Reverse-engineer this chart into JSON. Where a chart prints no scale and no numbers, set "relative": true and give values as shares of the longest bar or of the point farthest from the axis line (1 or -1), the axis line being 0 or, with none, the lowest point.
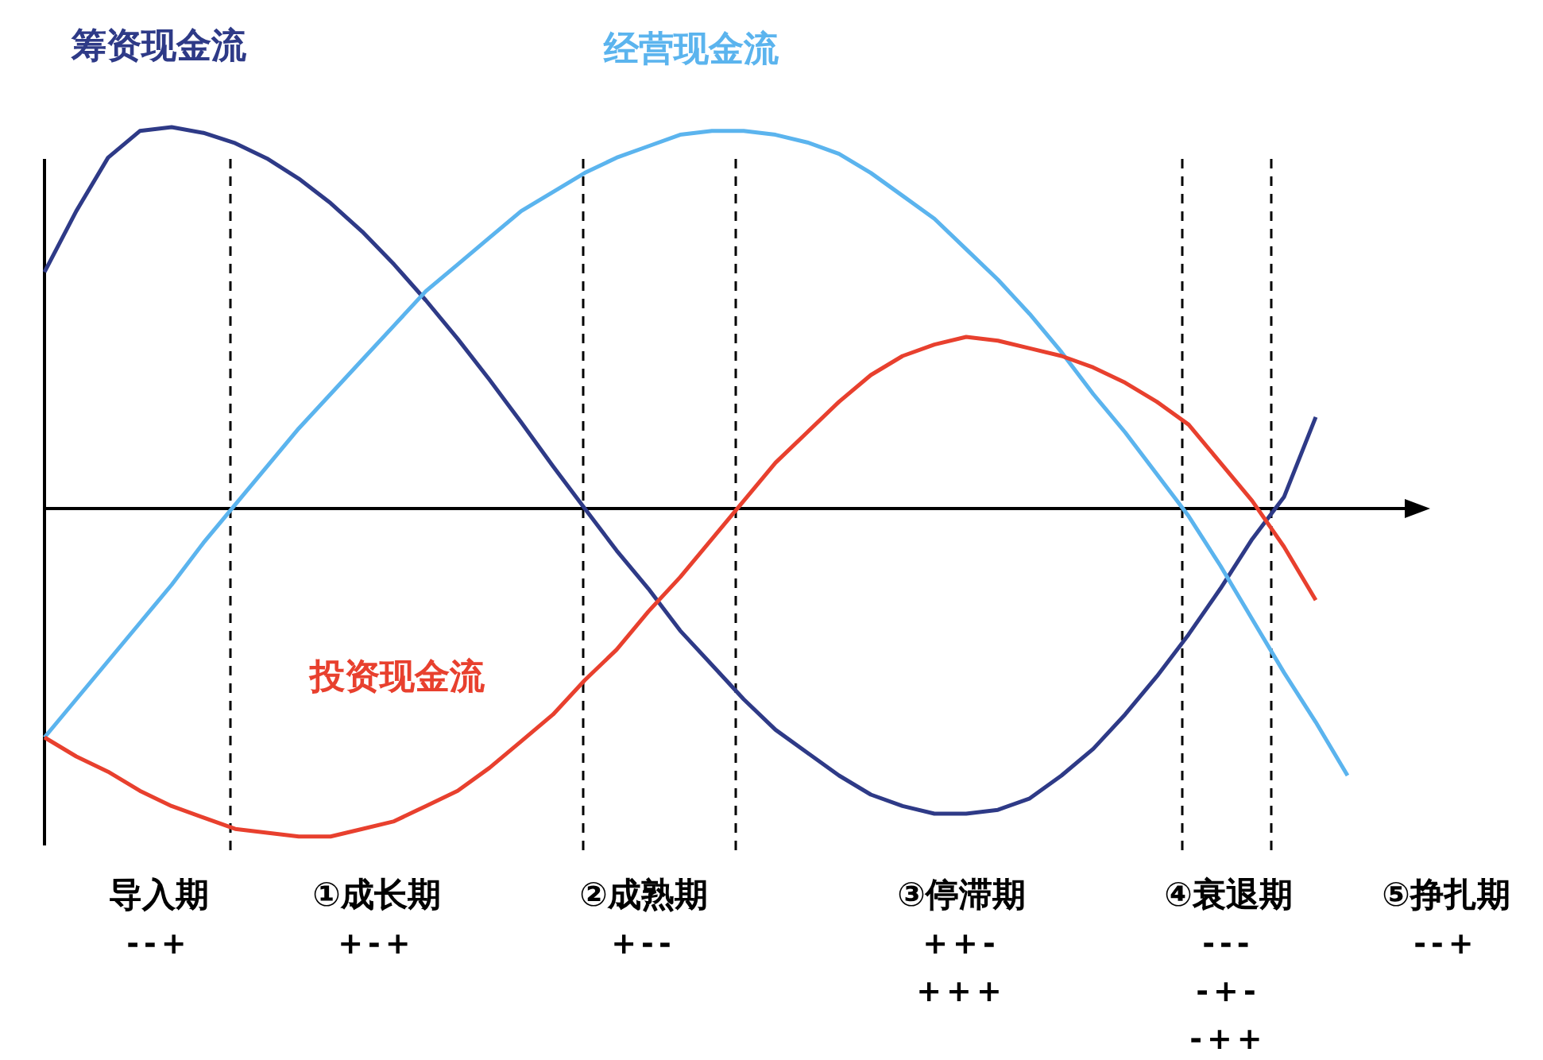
{
  "chart_data": {
    "type": "line",
    "relative": true,
    "legend": false,
    "grid": false,
    "marker": "none",
    "line_style": "solid",
    "categories": [
      null,
      null,
      null,
      null,
      null,
      null,
      null,
      null,
      null,
      null,
      null,
      null,
      null,
      null,
      null,
      null,
      null,
      null,
      null,
      null,
      null,
      null,
      null,
      null,
      null,
      null,
      null,
      null,
      null,
      null,
      null,
      null,
      null,
      null,
      null,
      null,
      null,
      null,
      null,
      null,
      null,
      null
    ],
    "series": [
      {
        "name": "筹资现金流",
        "color": "#2e3a87",
        "values": [
          0.62,
          0.78,
          0.92,
          0.99,
          1.0,
          0.985,
          0.958,
          0.918,
          0.865,
          0.801,
          0.726,
          0.64,
          0.546,
          0.445,
          0.338,
          0.226,
          0.111,
          0.0,
          -0.11,
          -0.21,
          -0.32,
          -0.41,
          -0.5,
          -0.58,
          -0.64,
          -0.7,
          -0.75,
          -0.78,
          -0.8,
          -0.8,
          -0.79,
          -0.76,
          -0.7,
          -0.63,
          -0.54,
          -0.44,
          -0.33,
          -0.21,
          -0.08,
          0.03,
          0.24,
          null
        ]
      },
      {
        "name": "经营现金流",
        "color": "#5bb4ee",
        "values": [
          -0.6,
          -0.5,
          -0.4,
          -0.3,
          -0.2,
          -0.09,
          0.01,
          0.11,
          0.21,
          0.3,
          0.39,
          0.48,
          0.57,
          0.64,
          0.71,
          0.78,
          0.83,
          0.88,
          0.92,
          0.95,
          0.98,
          0.99,
          0.99,
          0.98,
          0.96,
          0.93,
          0.88,
          0.82,
          0.76,
          0.68,
          0.6,
          0.51,
          0.41,
          0.3,
          0.2,
          0.09,
          -0.02,
          -0.15,
          -0.29,
          -0.43,
          -0.56,
          -0.7
        ]
      },
      {
        "name": "投资现金流",
        "color": "#e8402e",
        "values": [
          -0.6,
          -0.65,
          -0.69,
          -0.74,
          -0.78,
          -0.81,
          -0.84,
          -0.85,
          -0.86,
          -0.86,
          -0.84,
          -0.82,
          -0.78,
          -0.74,
          -0.68,
          -0.61,
          -0.54,
          -0.45,
          -0.37,
          -0.27,
          -0.18,
          -0.08,
          0.02,
          0.12,
          0.2,
          0.28,
          0.35,
          0.4,
          0.43,
          0.45,
          0.44,
          0.42,
          0.4,
          0.37,
          0.33,
          0.28,
          0.22,
          0.12,
          0.02,
          -0.1,
          -0.24,
          null
        ]
      }
    ],
    "annotations": [
      "导入期\n--+",
      "①成长期\n+-+",
      "②成熟期\n+--",
      "③停滞期\n++-\n+++",
      "④衰退期\n---\n-+-\n-++",
      "⑤挣扎期\n--+"
    ]
  }
}
